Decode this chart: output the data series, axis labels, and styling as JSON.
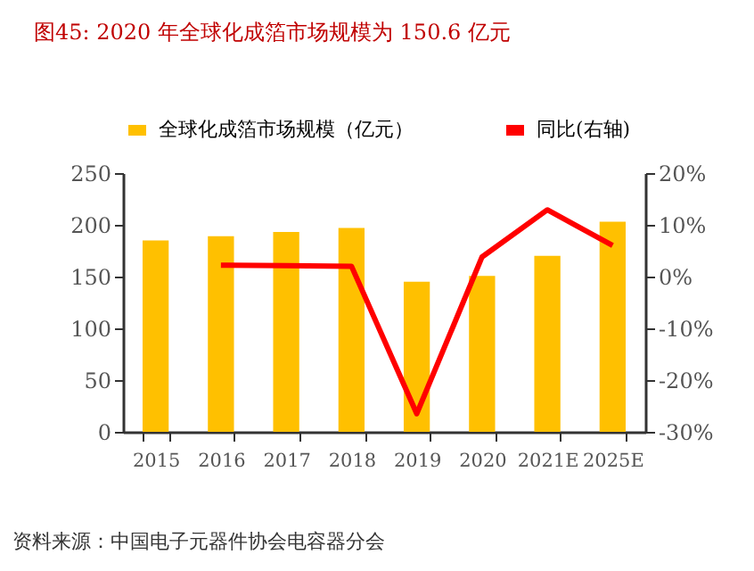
{
  "chart_data": {
    "type": "bar",
    "title": "图45:    2020 年全球化成箔市场规模为 150.6 亿元",
    "categories": [
      "2015",
      "2016",
      "2017",
      "2018",
      "2019",
      "2020",
      "2021E",
      "2025E"
    ],
    "series": [
      {
        "name": "全球化成箔市场规模（亿元）",
        "color": "#ffc000",
        "values": [
          185,
          189,
          193,
          197,
          145,
          150.6,
          170,
          203
        ]
      },
      {
        "name": "同比(右轴)",
        "type": "line",
        "axis": "y2",
        "color": "#ff0000",
        "values": [
          null,
          2.2,
          2.1,
          2.0,
          -26.5,
          3.8,
          12.9,
          6.0
        ]
      }
    ],
    "ylim": [
      0,
      250
    ],
    "yticks": [
      0,
      50,
      100,
      150,
      200,
      250
    ],
    "y2lim": [
      -30,
      20
    ],
    "y2ticks": [
      {
        "value": -30,
        "label": "-30%"
      },
      {
        "value": -20,
        "label": "-20%"
      },
      {
        "value": -10,
        "label": "-10%"
      },
      {
        "value": 0,
        "label": "0%"
      },
      {
        "value": 10,
        "label": "10%"
      },
      {
        "value": 20,
        "label": "20%"
      }
    ],
    "legend": "top",
    "grid": false,
    "marker": "none",
    "annotations": [
      "资料来源：中国电子元器件协会电容器分会"
    ]
  }
}
